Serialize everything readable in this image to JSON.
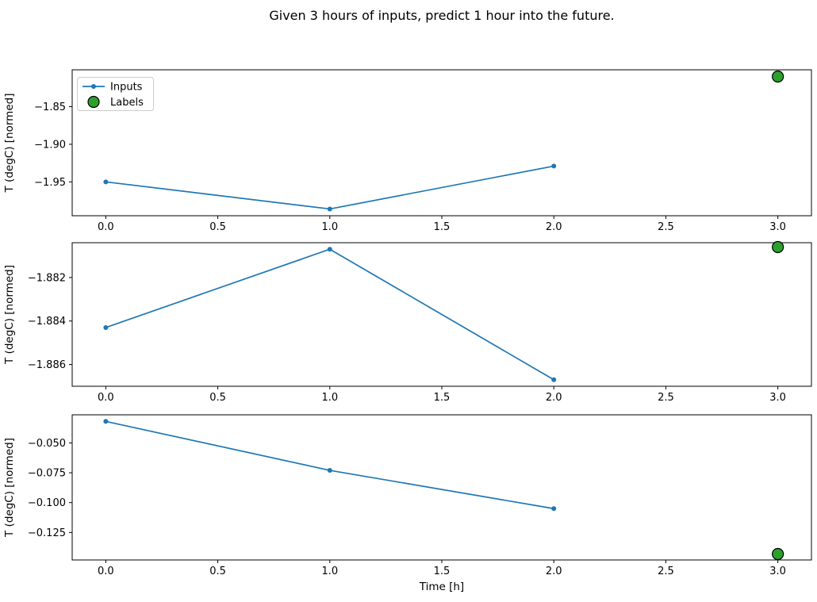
{
  "title": "Given 3 hours of inputs, predict 1 hour into the future.",
  "colors": {
    "background": "#ffffff",
    "inputs_line": "#1f77b4",
    "labels_fill": "#2ca02c",
    "labels_edge": "#000000",
    "axis": "#000000",
    "legend_border": "#cccccc",
    "text": "#000000"
  },
  "legend": {
    "inputs": "Inputs",
    "labels": "Labels",
    "position": "upper left of subplot 1"
  },
  "chart_data": [
    {
      "type": "line",
      "series": [
        {
          "name": "Inputs",
          "style": "line+marker",
          "color": "#1f77b4",
          "x": [
            0,
            1,
            2
          ],
          "y": [
            -1.95,
            -1.986,
            -1.929
          ]
        },
        {
          "name": "Labels",
          "style": "scatter",
          "color": "#2ca02c",
          "edge": "#000000",
          "x": [
            3
          ],
          "y": [
            -1.81
          ]
        }
      ],
      "xlabel": "",
      "ylabel": "T (degC) [normed]",
      "xlim": [
        -0.15,
        3.15
      ],
      "ylim": [
        -1.995,
        -1.801
      ],
      "xticks": [
        0.0,
        0.5,
        1.0,
        1.5,
        2.0,
        2.5,
        3.0
      ],
      "xtick_labels": [
        "0.0",
        "0.5",
        "1.0",
        "1.5",
        "2.0",
        "2.5",
        "3.0"
      ],
      "yticks": [
        -1.85,
        -1.9,
        -1.95
      ],
      "ytick_labels": [
        "−1.85",
        "−1.90",
        "−1.95"
      ],
      "legend_visible": true,
      "grid": false
    },
    {
      "type": "line",
      "series": [
        {
          "name": "Inputs",
          "style": "line+marker",
          "color": "#1f77b4",
          "x": [
            0,
            1,
            2
          ],
          "y": [
            -1.8843,
            -1.8807,
            -1.8867
          ]
        },
        {
          "name": "Labels",
          "style": "scatter",
          "color": "#2ca02c",
          "edge": "#000000",
          "x": [
            3
          ],
          "y": [
            -1.8806
          ]
        }
      ],
      "xlabel": "",
      "ylabel": "T (degC) [normed]",
      "xlim": [
        -0.15,
        3.15
      ],
      "ylim": [
        -1.887,
        -1.8804
      ],
      "xticks": [
        0.0,
        0.5,
        1.0,
        1.5,
        2.0,
        2.5,
        3.0
      ],
      "xtick_labels": [
        "0.0",
        "0.5",
        "1.0",
        "1.5",
        "2.0",
        "2.5",
        "3.0"
      ],
      "yticks": [
        -1.882,
        -1.884,
        -1.886
      ],
      "ytick_labels": [
        "−1.882",
        "−1.884",
        "−1.886"
      ],
      "legend_visible": false,
      "grid": false
    },
    {
      "type": "line",
      "series": [
        {
          "name": "Inputs",
          "style": "line+marker",
          "color": "#1f77b4",
          "x": [
            0,
            1,
            2
          ],
          "y": [
            -0.032,
            -0.073,
            -0.105
          ]
        },
        {
          "name": "Labels",
          "style": "scatter",
          "color": "#2ca02c",
          "edge": "#000000",
          "x": [
            3
          ],
          "y": [
            -0.143
          ]
        }
      ],
      "xlabel": "Time [h]",
      "ylabel": "T (degC) [normed]",
      "xlim": [
        -0.15,
        3.15
      ],
      "ylim": [
        -0.148,
        -0.0265
      ],
      "xticks": [
        0.0,
        0.5,
        1.0,
        1.5,
        2.0,
        2.5,
        3.0
      ],
      "xtick_labels": [
        "0.0",
        "0.5",
        "1.0",
        "1.5",
        "2.0",
        "2.5",
        "3.0"
      ],
      "yticks": [
        -0.05,
        -0.075,
        -0.1,
        -0.125
      ],
      "ytick_labels": [
        "−0.050",
        "−0.075",
        "−0.100",
        "−0.125"
      ],
      "legend_visible": false,
      "grid": false
    }
  ]
}
